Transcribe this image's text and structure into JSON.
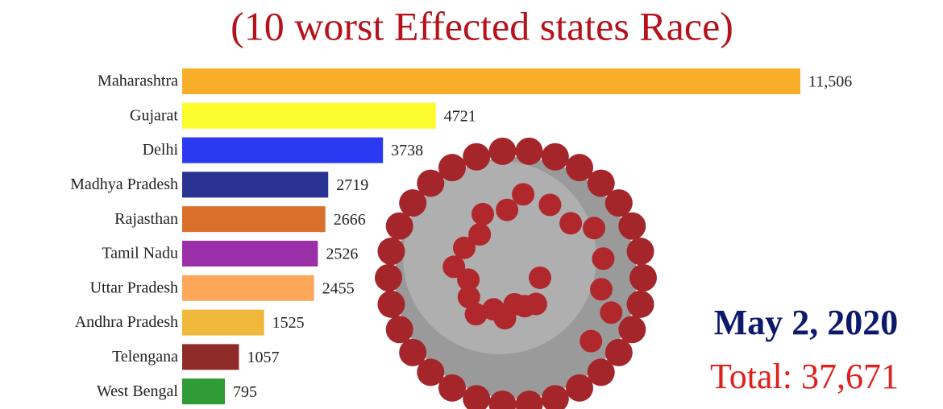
{
  "chart_data": {
    "type": "barh",
    "title": "(10 worst Effected states Race)",
    "categories": [
      "Maharashtra",
      "Gujarat",
      "Delhi",
      "Madhya Pradesh",
      "Rajasthan",
      "Tamil Nadu",
      "Uttar Pradesh",
      "Andhra Pradesh",
      "Telengana",
      "West Bengal"
    ],
    "values": [
      11506,
      4721,
      3738,
      2719,
      2666,
      2526,
      2455,
      1525,
      1057,
      795
    ],
    "value_labels": [
      "11,506",
      "4721",
      "3738",
      "2719",
      "2666",
      "2526",
      "2455",
      "1525",
      "1057",
      "795"
    ],
    "colors": [
      "#f9ae2a",
      "#fcfc2c",
      "#2b3af1",
      "#2a3391",
      "#d8702c",
      "#9b2fa8",
      "#fda75a",
      "#f0b83a",
      "#8e2a28",
      "#2f9b35"
    ],
    "xlim": [
      0,
      11506
    ],
    "date": "May 2, 2020",
    "total": "Total: 37,671"
  }
}
